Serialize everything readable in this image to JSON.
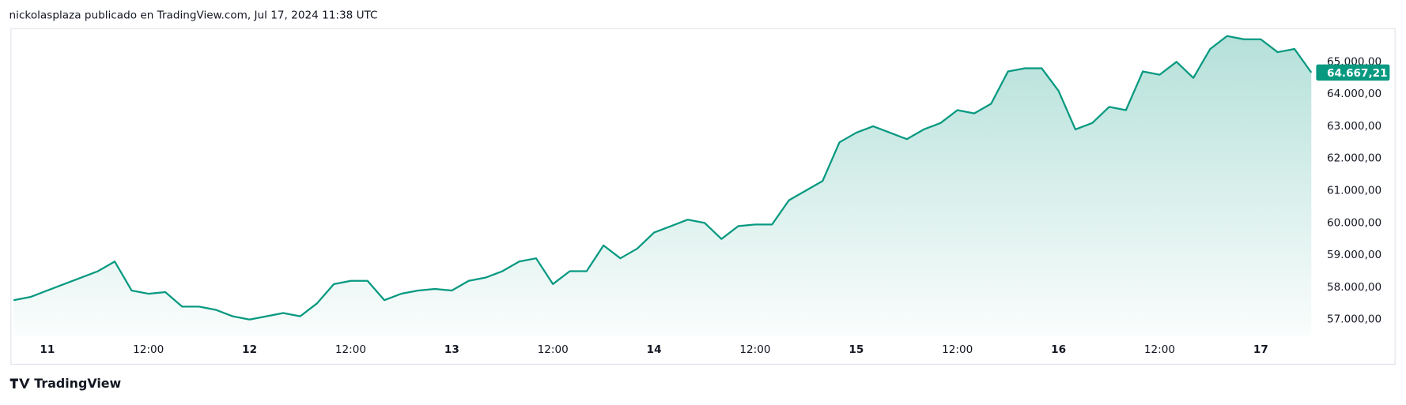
{
  "header": {
    "text": "nickolasplaza publicado en TradingView.com, Jul 17, 2024 11:38 UTC"
  },
  "footer": {
    "brand": "TradingView"
  },
  "chart_data": {
    "type": "area",
    "categories": [
      null,
      null,
      "11",
      null,
      null,
      null,
      null,
      null,
      "12:00",
      null,
      null,
      null,
      null,
      null,
      "12",
      null,
      null,
      null,
      null,
      null,
      "12:00",
      null,
      null,
      null,
      null,
      null,
      "13",
      null,
      null,
      null,
      null,
      null,
      "12:00",
      null,
      null,
      null,
      null,
      null,
      "14",
      null,
      null,
      null,
      null,
      null,
      "12:00",
      null,
      null,
      null,
      null,
      null,
      "15",
      null,
      null,
      null,
      null,
      null,
      "12:00",
      null,
      null,
      null,
      null,
      null,
      "16",
      null,
      null,
      null,
      null,
      null,
      "12:00",
      null,
      null,
      null,
      null,
      null,
      "17",
      null,
      null,
      null
    ],
    "series": [
      {
        "color": "#089981",
        "values": [
          57600,
          57700,
          57900,
          58100,
          58300,
          58500,
          58800,
          57900,
          57800,
          57850,
          57400,
          57400,
          57300,
          57100,
          57000,
          57100,
          57200,
          57100,
          57500,
          58100,
          58200,
          58200,
          57600,
          57800,
          57900,
          57950,
          57900,
          58200,
          58300,
          58500,
          58800,
          58900,
          58100,
          58500,
          58500,
          59300,
          58900,
          59200,
          59700,
          59900,
          60100,
          60000,
          59500,
          59900,
          59950,
          59950,
          60700,
          61000,
          61300,
          62500,
          62800,
          63000,
          62800,
          62600,
          62900,
          63100,
          63500,
          63400,
          63700,
          64700,
          64800,
          64800,
          64100,
          62900,
          63100,
          63600,
          63500,
          64700,
          64600,
          65000,
          64500,
          65400,
          65800,
          65700,
          65700,
          65300,
          65400,
          64667.21
        ]
      }
    ],
    "last_price": {
      "value": 64667.21,
      "label": "64.667,21"
    },
    "ylim": [
      56500,
      66030
    ],
    "yticks": [
      {
        "value": 57000,
        "label": "57.000,00"
      },
      {
        "value": 58000,
        "label": "58.000,00"
      },
      {
        "value": 59000,
        "label": "59.000,00"
      },
      {
        "value": 60000,
        "label": "60.000,00"
      },
      {
        "value": 61000,
        "label": "61.000,00"
      },
      {
        "value": 62000,
        "label": "62.000,00"
      },
      {
        "value": 63000,
        "label": "63.000,00"
      },
      {
        "value": 64000,
        "label": "64.000,00"
      },
      {
        "value": 65000,
        "label": "65.000,00"
      }
    ],
    "grid": false
  }
}
